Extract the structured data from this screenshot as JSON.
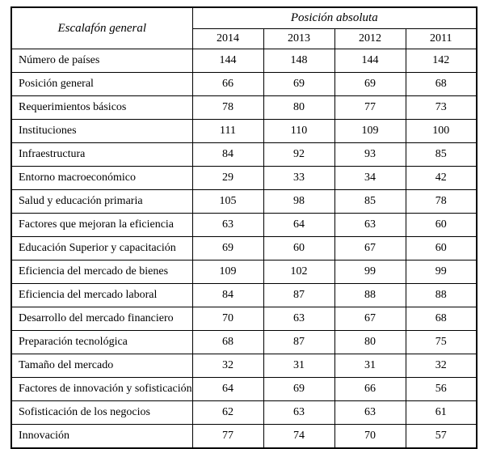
{
  "table": {
    "corner_header": "Escalafón general",
    "group_header": "Posición absoluta",
    "year_headers": [
      "2014",
      "2013",
      "2012",
      "2011"
    ],
    "rows": [
      {
        "label": "Número de países",
        "values": [
          "144",
          "148",
          "144",
          "142"
        ]
      },
      {
        "label": "Posición general",
        "values": [
          "66",
          "69",
          "69",
          "68"
        ]
      },
      {
        "label": "Requerimientos básicos",
        "values": [
          "78",
          "80",
          "77",
          "73"
        ]
      },
      {
        "label": "Instituciones",
        "values": [
          "111",
          "110",
          "109",
          "100"
        ]
      },
      {
        "label": "Infraestructura",
        "values": [
          "84",
          "92",
          "93",
          "85"
        ]
      },
      {
        "label": "Entorno macroeconómico",
        "values": [
          "29",
          "33",
          "34",
          "42"
        ]
      },
      {
        "label": "Salud y educación primaria",
        "values": [
          "105",
          "98",
          "85",
          "78"
        ]
      },
      {
        "label": "Factores que mejoran la eficiencia",
        "values": [
          "63",
          "64",
          "63",
          "60"
        ]
      },
      {
        "label": "Educación Superior y capacitación",
        "values": [
          "69",
          "60",
          "67",
          "60"
        ]
      },
      {
        "label": "Eficiencia del mercado de bienes",
        "values": [
          "109",
          "102",
          "99",
          "99"
        ]
      },
      {
        "label": "Eficiencia del mercado laboral",
        "values": [
          "84",
          "87",
          "88",
          "88"
        ]
      },
      {
        "label": "Desarrollo del mercado financiero",
        "values": [
          "70",
          "63",
          "67",
          "68"
        ]
      },
      {
        "label": "Preparación tecnológica",
        "values": [
          "68",
          "87",
          "80",
          "75"
        ]
      },
      {
        "label": "Tamaño del mercado",
        "values": [
          "32",
          "31",
          "31",
          "32"
        ]
      },
      {
        "label": "Factores de innovación y sofisticación",
        "values": [
          "64",
          "69",
          "66",
          "56"
        ]
      },
      {
        "label": "Sofisticación de los negocios",
        "values": [
          "62",
          "63",
          "63",
          "61"
        ]
      },
      {
        "label": "Innovación",
        "values": [
          "77",
          "74",
          "70",
          "57"
        ]
      }
    ]
  }
}
